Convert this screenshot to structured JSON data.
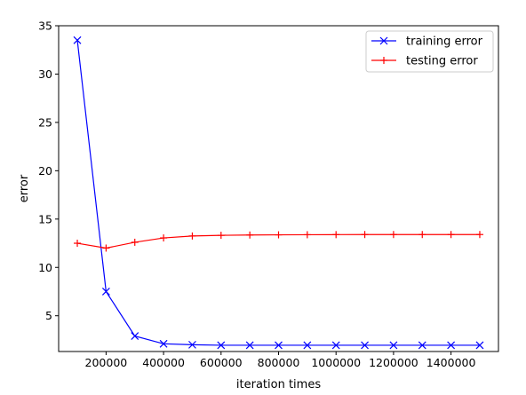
{
  "chart_data": {
    "type": "line",
    "title": "",
    "xlabel": "iteration times",
    "ylabel": "error",
    "xlim": [
      35000,
      1565000
    ],
    "ylim": [
      1.3,
      35
    ],
    "x_ticks": [
      200000,
      400000,
      600000,
      800000,
      1000000,
      1200000,
      1400000
    ],
    "x_tick_labels": [
      "200000",
      "400000",
      "600000",
      "800000",
      "1000000",
      "1200000",
      "1400000"
    ],
    "y_ticks": [
      5,
      10,
      15,
      20,
      25,
      30,
      35
    ],
    "y_tick_labels": [
      "5",
      "10",
      "15",
      "20",
      "25",
      "30",
      "35"
    ],
    "grid": false,
    "legend_position": "top-right",
    "x": [
      100000,
      200000,
      300000,
      400000,
      500000,
      600000,
      700000,
      800000,
      900000,
      1000000,
      1100000,
      1200000,
      1300000,
      1400000,
      1500000
    ],
    "series": [
      {
        "name": "training error",
        "color": "#0000ff",
        "marker": "x",
        "values": [
          33.5,
          7.5,
          2.9,
          2.1,
          2.0,
          1.95,
          1.95,
          1.95,
          1.95,
          1.95,
          1.95,
          1.95,
          1.95,
          1.95,
          1.95
        ]
      },
      {
        "name": "testing error",
        "color": "#ff0000",
        "marker": "+",
        "values": [
          12.5,
          12.0,
          12.6,
          13.05,
          13.25,
          13.32,
          13.35,
          13.37,
          13.38,
          13.39,
          13.4,
          13.4,
          13.4,
          13.4,
          13.4
        ]
      }
    ]
  }
}
